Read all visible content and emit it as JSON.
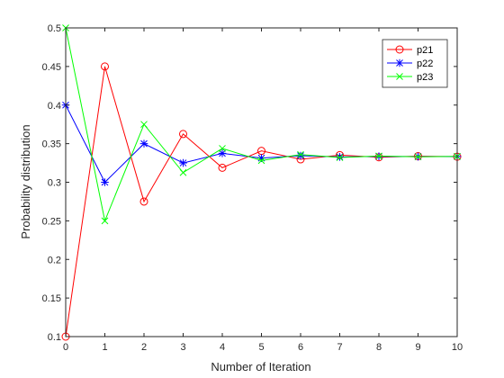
{
  "chart_data": {
    "type": "line",
    "title": "",
    "xlabel": "Number of Iteration",
    "ylabel": "Probability distribution",
    "xlim": [
      0,
      10
    ],
    "ylim": [
      0.1,
      0.5
    ],
    "x_ticks": [
      0,
      1,
      2,
      3,
      4,
      5,
      6,
      7,
      8,
      9,
      10
    ],
    "x_tick_labels": [
      "0",
      "1",
      "2",
      "3",
      "4",
      "5",
      "6",
      "7",
      "8",
      "9",
      "10"
    ],
    "y_ticks": [
      0.1,
      0.15,
      0.2,
      0.25,
      0.3,
      0.35,
      0.4,
      0.45,
      0.5
    ],
    "y_tick_labels": [
      "0.1",
      "0.15",
      "0.2",
      "0.25",
      "0.3",
      "0.35",
      "0.4",
      "0.45",
      "0.5"
    ],
    "grid": false,
    "legend_position": "top-right",
    "x": [
      0,
      1,
      2,
      3,
      4,
      5,
      6,
      7,
      8,
      9,
      10
    ],
    "series": [
      {
        "name": "p21",
        "color": "#ff0000",
        "marker": "circle",
        "values": [
          0.1,
          0.45,
          0.275,
          0.3625,
          0.3188,
          0.3406,
          0.3297,
          0.3352,
          0.3324,
          0.3338,
          0.3331
        ]
      },
      {
        "name": "p22",
        "color": "#0000ff",
        "marker": "asterisk",
        "values": [
          0.4,
          0.3,
          0.35,
          0.325,
          0.3375,
          0.3313,
          0.3344,
          0.3328,
          0.3336,
          0.3332,
          0.3334
        ]
      },
      {
        "name": "p23",
        "color": "#00ff00",
        "marker": "cross",
        "values": [
          0.5,
          0.25,
          0.375,
          0.3125,
          0.3438,
          0.3281,
          0.3359,
          0.332,
          0.334,
          0.333,
          0.3335
        ]
      }
    ]
  }
}
